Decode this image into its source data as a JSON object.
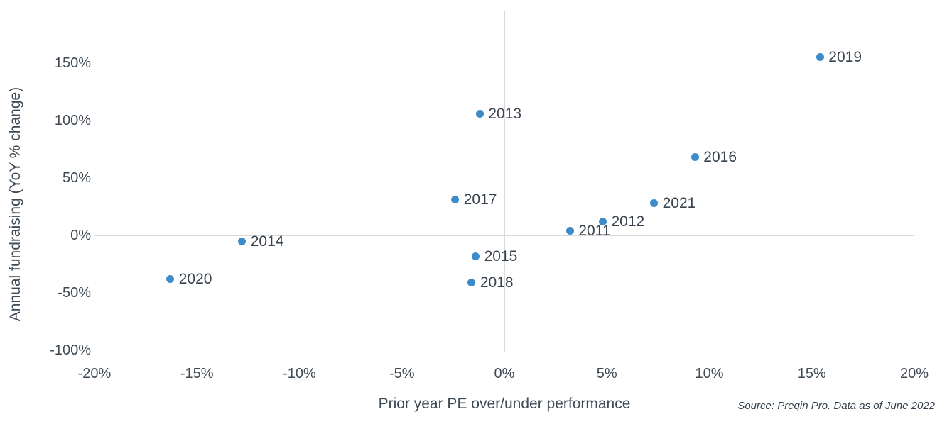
{
  "chart_data": {
    "type": "scatter",
    "title": "",
    "xlabel": "Prior year PE over/under performance",
    "ylabel": "Annual fundraising (YoY % change)",
    "source_note": "Source: Preqin Pro. Data as of June 2022",
    "xlim": [
      -20,
      20
    ],
    "ylim": [
      -102,
      195
    ],
    "grid": false,
    "legend": "none",
    "colors": {
      "point": "#3e8bca",
      "axis_line": "#d9d9d9",
      "tick_text": "#3f4a54"
    },
    "x_ticks": [
      {
        "v": -20,
        "label": "-20%"
      },
      {
        "v": -15,
        "label": "-15%"
      },
      {
        "v": -10,
        "label": "-10%"
      },
      {
        "v": -5,
        "label": "-5%"
      },
      {
        "v": 0,
        "label": "0%"
      },
      {
        "v": 5,
        "label": "5%"
      },
      {
        "v": 10,
        "label": "10%"
      },
      {
        "v": 15,
        "label": "15%"
      },
      {
        "v": 20,
        "label": "20%"
      }
    ],
    "y_ticks": [
      {
        "v": 150,
        "label": "150%"
      },
      {
        "v": 100,
        "label": "100%"
      },
      {
        "v": 50,
        "label": "50%"
      },
      {
        "v": 0,
        "label": "0%"
      },
      {
        "v": -50,
        "label": "-50%"
      },
      {
        "v": -100,
        "label": "-100%"
      }
    ],
    "points": [
      {
        "label": "2011",
        "x": 3.2,
        "y": 4
      },
      {
        "label": "2012",
        "x": 4.8,
        "y": 12
      },
      {
        "label": "2013",
        "x": -1.2,
        "y": 106
      },
      {
        "label": "2014",
        "x": -12.8,
        "y": -5
      },
      {
        "label": "2015",
        "x": -1.4,
        "y": -18
      },
      {
        "label": "2016",
        "x": 9.3,
        "y": 68
      },
      {
        "label": "2017",
        "x": -2.4,
        "y": 31
      },
      {
        "label": "2018",
        "x": -1.6,
        "y": -41
      },
      {
        "label": "2019",
        "x": 15.4,
        "y": 155
      },
      {
        "label": "2020",
        "x": -16.3,
        "y": -38
      },
      {
        "label": "2021",
        "x": 7.3,
        "y": 28
      }
    ]
  }
}
